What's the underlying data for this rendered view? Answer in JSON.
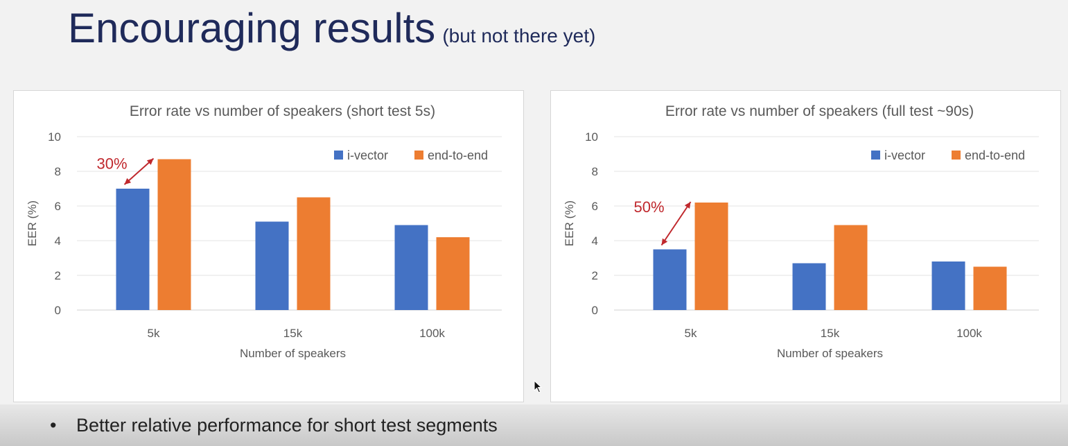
{
  "slide": {
    "title": "Encouraging results",
    "subtitle": "(but not there yet)",
    "bullet": "Better relative performance for short test segments",
    "bullet_marker": "•"
  },
  "colors": {
    "i_vector": "#4472c4",
    "end_to_end": "#ed7d31",
    "annotation": "#c0282d"
  },
  "chart_data": [
    {
      "type": "bar",
      "title": "Error rate vs number of speakers (short test 5s)",
      "xlabel": "Number of speakers",
      "ylabel": "EER (%)",
      "ylim": [
        0,
        10
      ],
      "yticks": [
        0,
        2,
        4,
        6,
        8,
        10
      ],
      "grid": true,
      "legend": "top-right",
      "categories": [
        "5k",
        "15k",
        "100k"
      ],
      "series": [
        {
          "name": "i-vector",
          "color": "#4472c4",
          "values": [
            7.0,
            5.1,
            4.9
          ]
        },
        {
          "name": "end-to-end",
          "color": "#ed7d31",
          "values": [
            8.7,
            6.5,
            4.2
          ]
        }
      ],
      "annotation": {
        "text": "30%",
        "category": "5k"
      }
    },
    {
      "type": "bar",
      "title": "Error rate vs number of speakers (full test ~90s)",
      "xlabel": "Number of speakers",
      "ylabel": "EER (%)",
      "ylim": [
        0,
        10
      ],
      "yticks": [
        0,
        2,
        4,
        6,
        8,
        10
      ],
      "grid": true,
      "legend": "top-right",
      "categories": [
        "5k",
        "15k",
        "100k"
      ],
      "series": [
        {
          "name": "i-vector",
          "color": "#4472c4",
          "values": [
            3.5,
            2.7,
            2.8
          ]
        },
        {
          "name": "end-to-end",
          "color": "#ed7d31",
          "values": [
            6.2,
            4.9,
            2.5
          ]
        }
      ],
      "annotation": {
        "text": "50%",
        "category": "5k"
      }
    }
  ]
}
